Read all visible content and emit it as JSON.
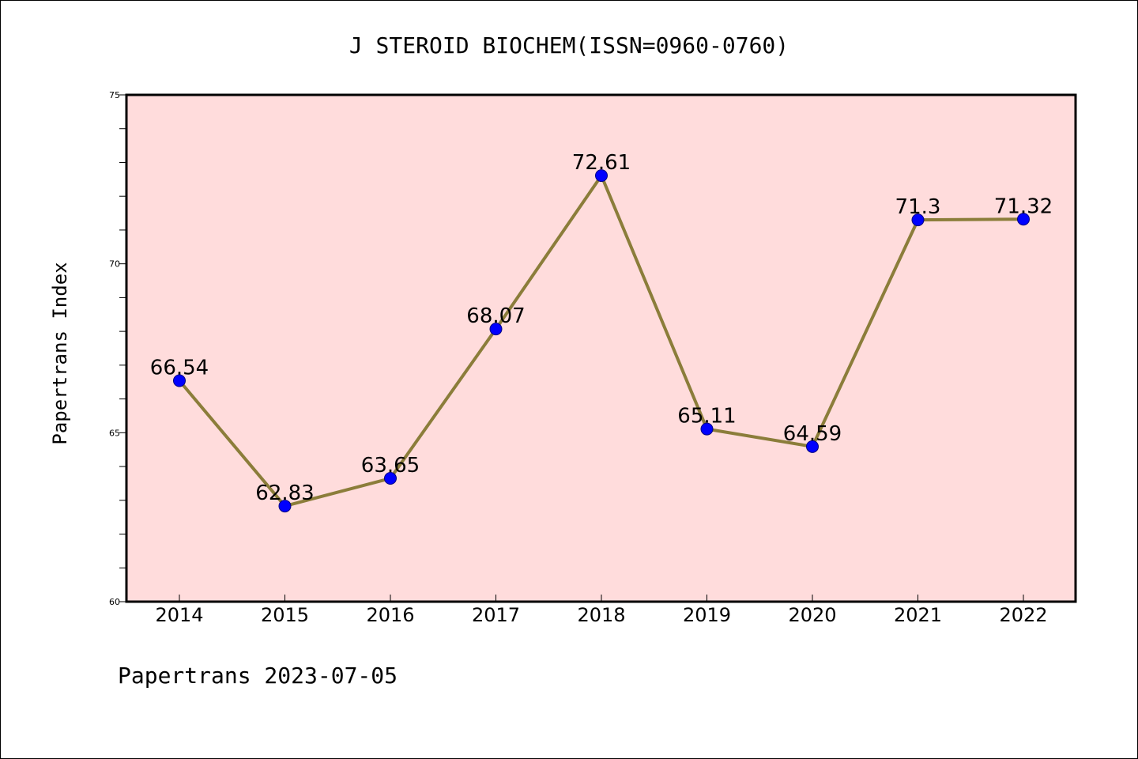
{
  "chart_data": {
    "type": "line",
    "title": "J STEROID BIOCHEM(ISSN=0960-0760)",
    "xlabel": "",
    "ylabel": "Papertrans Index",
    "categories": [
      "2014",
      "2015",
      "2016",
      "2017",
      "2018",
      "2019",
      "2020",
      "2021",
      "2022"
    ],
    "series": [
      {
        "values": [
          66.54,
          62.83,
          63.65,
          68.07,
          72.61,
          65.11,
          64.59,
          71.3,
          71.32
        ],
        "labels": [
          "66.54",
          "62.83",
          "63.65",
          "68.07",
          "72.61",
          "65.11",
          "64.59",
          "71.3",
          "71.32"
        ]
      }
    ],
    "ylim": [
      60,
      75
    ],
    "yticks": [
      "60",
      "65",
      "70",
      "75"
    ],
    "grid": false,
    "legend": "none",
    "colors": {
      "plot_background": "#ffdcdc",
      "line": "#8b7d3a",
      "marker": "#0000ff",
      "axis": "#000000"
    }
  },
  "footer": {
    "text": "Papertrans 2023-07-05"
  }
}
